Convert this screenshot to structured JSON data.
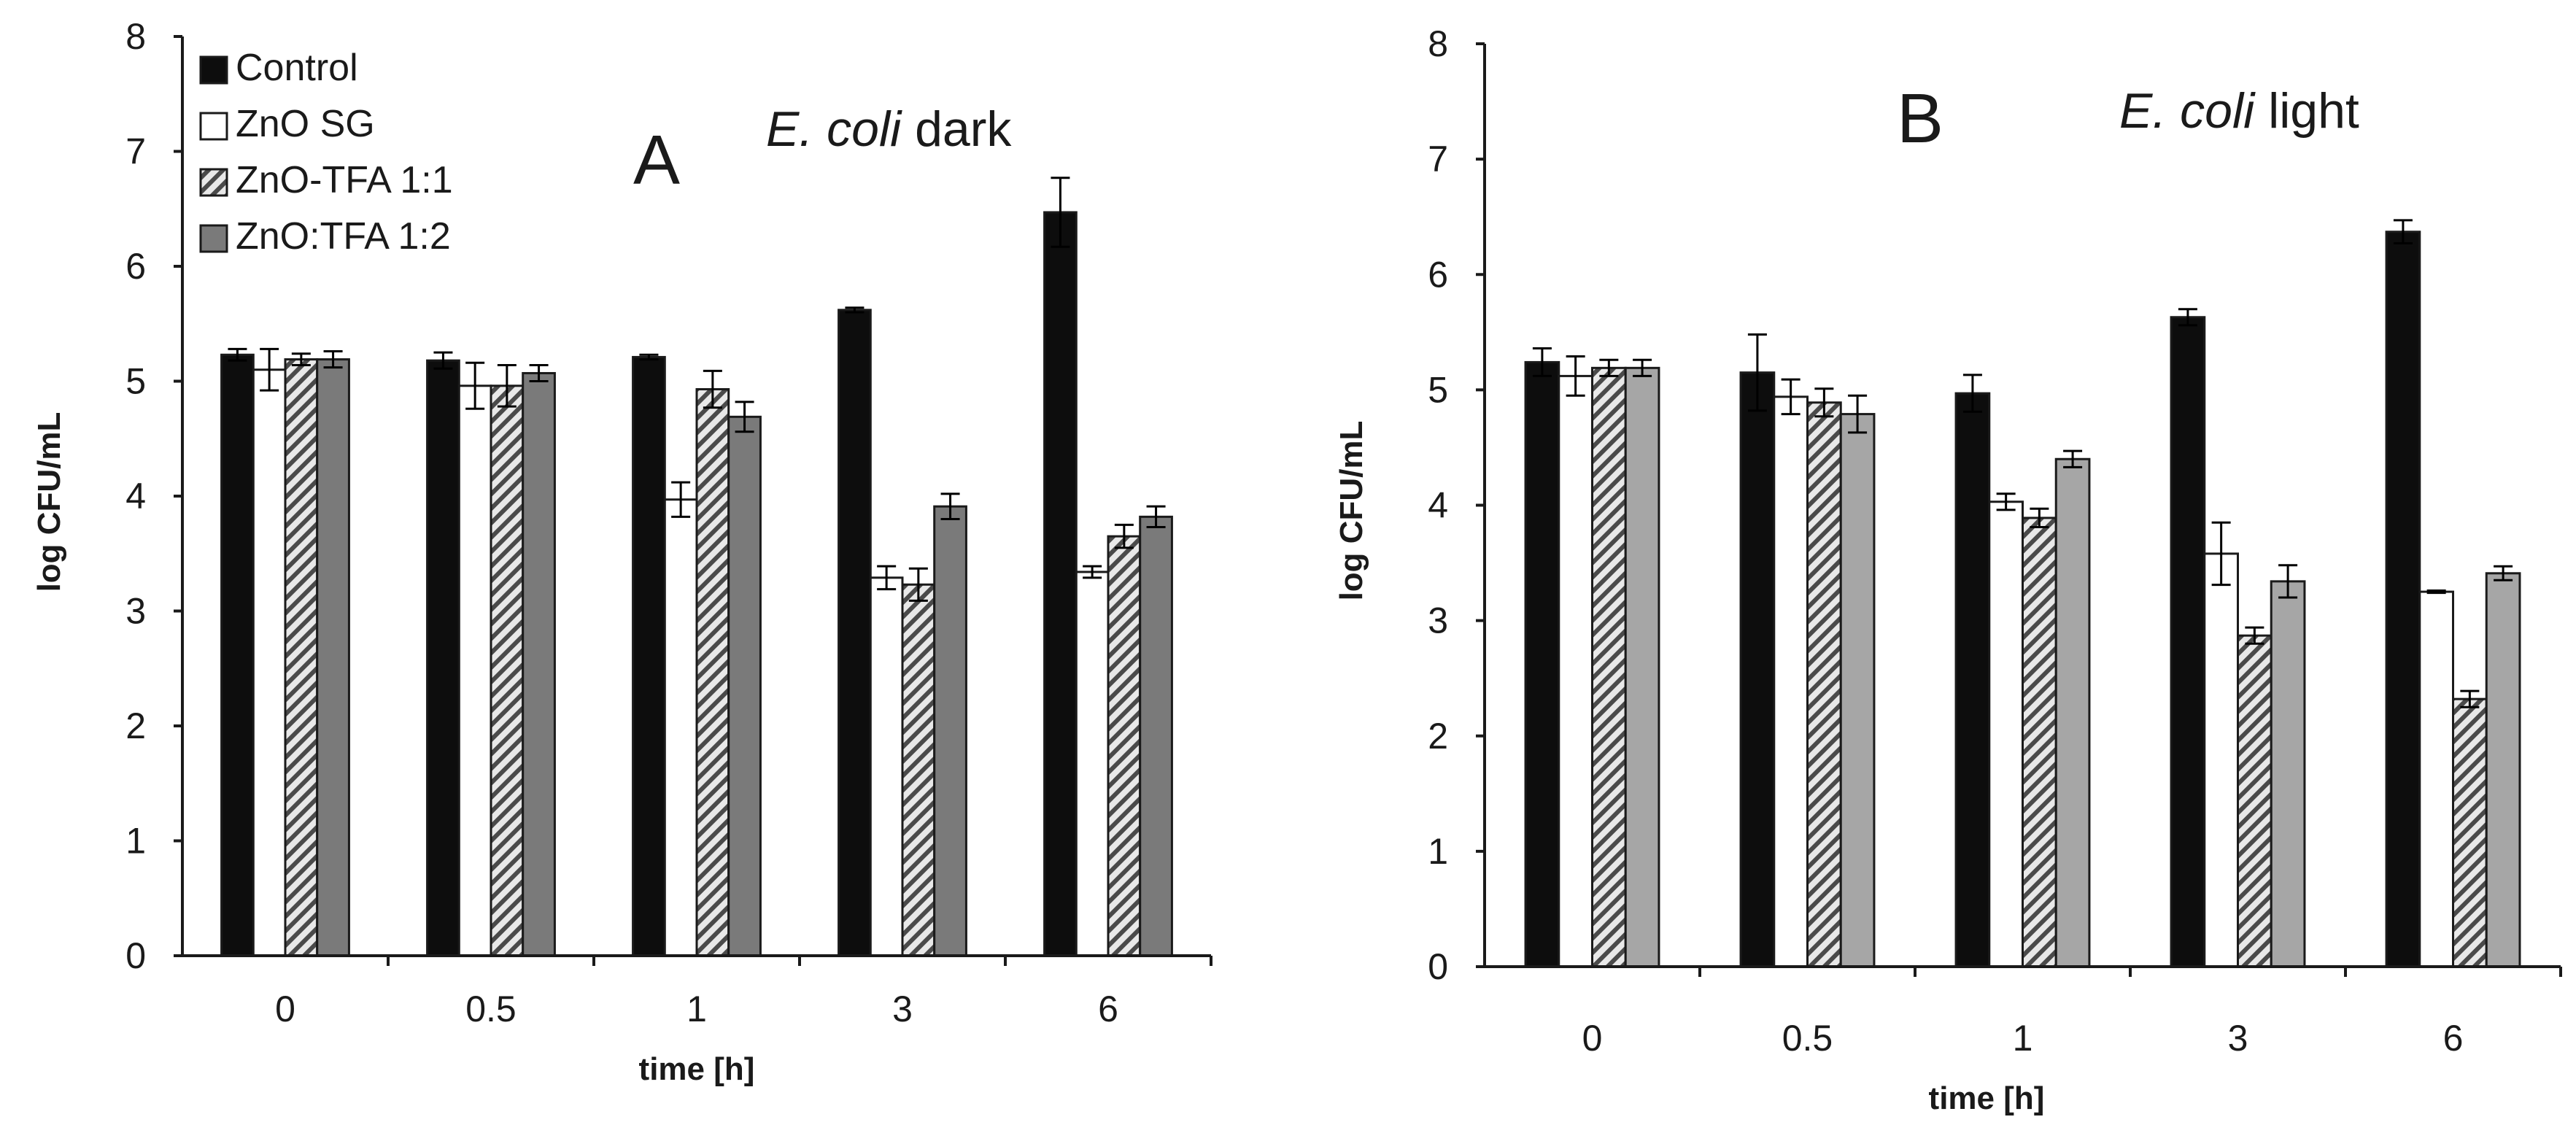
{
  "chart_data": [
    {
      "type": "bar",
      "panel_label": "A",
      "title_italic": "E. coli",
      "title_rest": " dark",
      "xlabel": "time [h]",
      "ylabel": "log CFU/mL",
      "ylim": [
        0,
        8
      ],
      "yticks": [
        "0",
        "1",
        "2",
        "3",
        "4",
        "5",
        "6",
        "7",
        "8"
      ],
      "categories": [
        "0",
        "0.5",
        "1",
        "3",
        "6"
      ],
      "legend_position": "top-left",
      "series": [
        {
          "name": "Control",
          "values": [
            5.23,
            5.18,
            5.21,
            5.62,
            6.47
          ],
          "errors": [
            0.05,
            0.07,
            0.02,
            0.02,
            0.3
          ]
        },
        {
          "name": "ZnO SG",
          "values": [
            5.1,
            4.96,
            3.97,
            3.29,
            3.34
          ],
          "errors": [
            0.18,
            0.2,
            0.15,
            0.1,
            0.05
          ]
        },
        {
          "name": "ZnO-TFA 1:1",
          "values": [
            5.19,
            4.96,
            4.93,
            3.23,
            3.65
          ],
          "errors": [
            0.05,
            0.18,
            0.16,
            0.14,
            0.1
          ]
        },
        {
          "name": "ZnO:TFA 1:2",
          "values": [
            5.19,
            5.07,
            4.69,
            3.91,
            3.82
          ],
          "errors": [
            0.07,
            0.07,
            0.13,
            0.11,
            0.09
          ]
        }
      ]
    },
    {
      "type": "bar",
      "panel_label": "B",
      "title_italic": "E. coli",
      "title_rest": " light",
      "xlabel": "time [h]",
      "ylabel": "log CFU/mL",
      "ylim": [
        0,
        8
      ],
      "yticks": [
        "0",
        "1",
        "2",
        "3",
        "4",
        "5",
        "6",
        "7",
        "8"
      ],
      "categories": [
        "0",
        "0.5",
        "1",
        "3",
        "6"
      ],
      "series": [
        {
          "name": "Control",
          "values": [
            5.24,
            5.15,
            4.97,
            5.63,
            6.37
          ],
          "errors": [
            0.12,
            0.33,
            0.16,
            0.07,
            0.1
          ]
        },
        {
          "name": "ZnO SG",
          "values": [
            5.12,
            4.94,
            4.03,
            3.58,
            3.25
          ],
          "errors": [
            0.17,
            0.15,
            0.07,
            0.27,
            0.01
          ]
        },
        {
          "name": "ZnO-TFA 1:1",
          "values": [
            5.19,
            4.89,
            3.89,
            2.87,
            2.32
          ],
          "errors": [
            0.07,
            0.12,
            0.08,
            0.07,
            0.07
          ]
        },
        {
          "name": "ZnO:TFA 1:2",
          "values": [
            5.19,
            4.79,
            4.4,
            3.34,
            3.41
          ],
          "errors": [
            0.07,
            0.16,
            0.07,
            0.14,
            0.06
          ]
        }
      ]
    }
  ],
  "colors": {
    "control": "#0d0d0d",
    "zno_sg": "#ffffff",
    "zno_tfa_11_bg": "#e8e8e8",
    "zno_tfa_11_hatch": "#4a4a4a",
    "zno_tfa_12_a": "#7a7a7a",
    "zno_tfa_12_b": "#a6a6a6",
    "axis": "#1a1a1a",
    "bar_edge": "#1a1a1a"
  }
}
